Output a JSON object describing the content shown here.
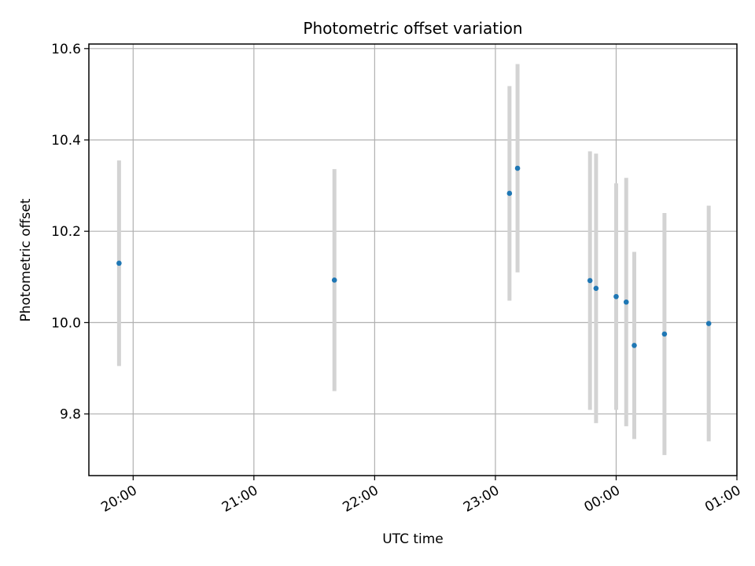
{
  "chart_data": {
    "type": "scatter",
    "title": "Photometric offset variation",
    "xlabel": "UTC time",
    "ylabel": "Photometric offset",
    "x_ticks": [
      "20:00",
      "21:00",
      "22:00",
      "23:00",
      "00:00",
      "01:00"
    ],
    "y_ticks": [
      "9.8",
      "10.0",
      "10.2",
      "10.4",
      "10.6"
    ],
    "xlim": [
      "19:38",
      "01:00"
    ],
    "ylim": [
      9.665,
      10.61
    ],
    "grid": true,
    "colors": {
      "point": "#1f77b4",
      "errorbar": "#d3d3d3",
      "grid": "#b0b0b0"
    },
    "series": [
      {
        "points": [
          {
            "x": "19:53",
            "y": 10.13,
            "err": 0.225
          },
          {
            "x": "21:40",
            "y": 10.093,
            "err": 0.243
          },
          {
            "x": "23:07",
            "y": 10.283,
            "err": 0.235
          },
          {
            "x": "23:11",
            "y": 10.338,
            "err": 0.228
          },
          {
            "x": "23:47",
            "y": 10.092,
            "err": 0.283
          },
          {
            "x": "23:50",
            "y": 10.075,
            "err": 0.295
          },
          {
            "x": "00:00",
            "y": 10.057,
            "err": 0.248
          },
          {
            "x": "00:05",
            "y": 10.045,
            "err": 0.272
          },
          {
            "x": "00:09",
            "y": 9.95,
            "err": 0.205
          },
          {
            "x": "00:24",
            "y": 9.975,
            "err": 0.265
          },
          {
            "x": "00:46",
            "y": 9.998,
            "err": 0.258
          }
        ]
      }
    ]
  }
}
